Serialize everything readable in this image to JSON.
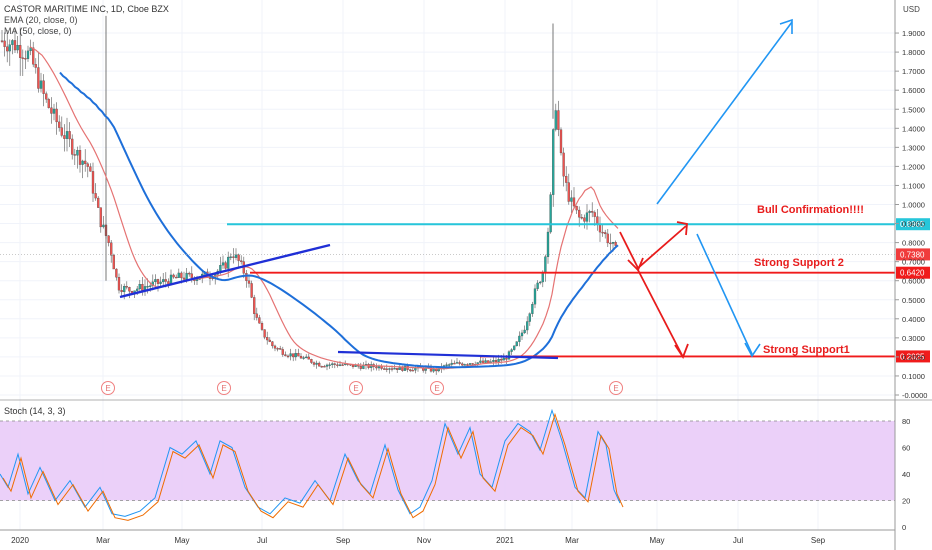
{
  "header": {
    "title": "CASTOR MARITIME INC, 1D, Cboe BZX",
    "ema_legend": "EMA (20, close, 0)",
    "ma_legend": "MA (50, close, 0)",
    "currency": "USD"
  },
  "colors": {
    "up": "#26a69a",
    "down": "#ef5350",
    "candle_body": "#555555",
    "ema": "#e57373",
    "ma": "#1e6fd9",
    "cyan_line": "#26c6da",
    "red_line": "#f01b1b",
    "trend_line": "#1f2fd6",
    "arrow_blue": "#2196f3",
    "arrow_red": "#e81c1c",
    "stoch_bg": "#e8c8f8",
    "stoch_k": "#2196f3",
    "stoch_d": "#ef6c00"
  },
  "chart_data": {
    "type": "candlestick",
    "price_axis": {
      "ticks": [
        "1.9000",
        "1.8000",
        "1.7000",
        "1.6000",
        "1.5000",
        "1.4000",
        "1.3000",
        "1.2000",
        "1.1000",
        "1.0000",
        "0.9000",
        "0.8000",
        "0.7000",
        "0.6000",
        "0.5000",
        "0.4000",
        "0.3000",
        "0.2000",
        "0.1000",
        "-0.0000"
      ],
      "range": [
        -0.01,
        1.99
      ]
    },
    "time_axis": {
      "ticks": [
        "2020",
        "Mar",
        "May",
        "Jul",
        "Sep",
        "Nov",
        "2021",
        "Mar",
        "May",
        "Jul",
        "Sep"
      ]
    },
    "horizontal_levels": [
      {
        "value": 0.8965,
        "label": "0.8965",
        "kind": "cyan"
      },
      {
        "value": 0.738,
        "label": "0.7380",
        "kind": "current"
      },
      {
        "value": 0.642,
        "label": "0.6420",
        "kind": "red"
      },
      {
        "value": 0.2025,
        "label": "0.2025",
        "kind": "red"
      }
    ],
    "annotations": [
      {
        "text": "Bull Confirmation!!!!",
        "value": 0.8965
      },
      {
        "text": "Strong Support 2",
        "value": 0.642
      },
      {
        "text": "Strong Support1",
        "value": 0.2025
      }
    ],
    "earnings_markers": [
      "E",
      "E",
      "E",
      "E",
      "E"
    ],
    "stoch": {
      "title": "Stoch (14, 3, 3)",
      "ticks": [
        "80",
        "60",
        "40",
        "20",
        "0"
      ],
      "range": [
        0,
        100
      ],
      "upper": 80,
      "lower": 20
    }
  }
}
